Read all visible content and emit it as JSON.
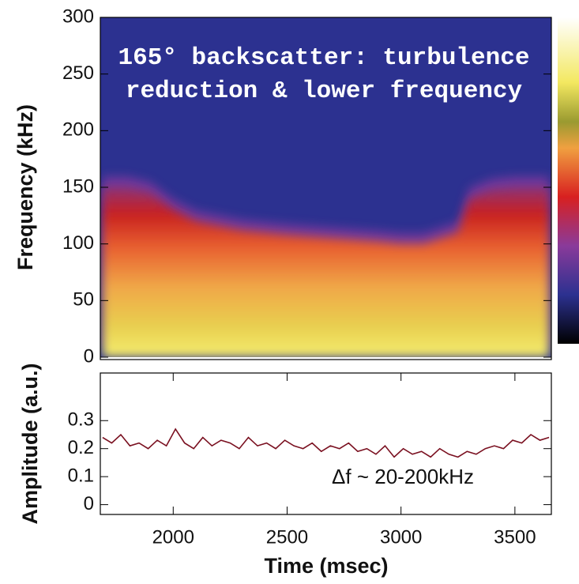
{
  "chart_data": [
    {
      "type": "heatmap",
      "annotation_lines": [
        "165° backscatter: turbulence",
        "reduction & lower frequency"
      ],
      "ylabel": "Frequency (kHz)",
      "x": [
        1690,
        1800,
        1900,
        2000,
        2100,
        2300,
        2500,
        2700,
        2900,
        3000,
        3100,
        3250,
        3300,
        3400,
        3500,
        3650
      ],
      "values": [
        150,
        150,
        145,
        130,
        120,
        112,
        108,
        105,
        102,
        100,
        100,
        110,
        140,
        148,
        150,
        150
      ],
      "xlim": [
        1680,
        3660
      ],
      "ylim": [
        0,
        300
      ],
      "yticks": [
        0,
        50,
        100,
        150,
        200,
        250,
        300
      ],
      "background": "#2c3190"
    },
    {
      "type": "line",
      "ylabel": "Amplitude (a.u.)",
      "xlabel": "Time (msec)",
      "annotation": "Δf ~ 20-200kHz",
      "x": [
        1690,
        1730,
        1770,
        1810,
        1850,
        1890,
        1930,
        1970,
        2010,
        2050,
        2090,
        2130,
        2170,
        2210,
        2250,
        2290,
        2330,
        2370,
        2410,
        2450,
        2490,
        2530,
        2570,
        2610,
        2650,
        2690,
        2730,
        2770,
        2810,
        2850,
        2890,
        2930,
        2970,
        3010,
        3050,
        3090,
        3130,
        3170,
        3210,
        3250,
        3290,
        3330,
        3370,
        3410,
        3450,
        3490,
        3530,
        3570,
        3610,
        3650
      ],
      "values": [
        0.24,
        0.22,
        0.25,
        0.21,
        0.22,
        0.2,
        0.23,
        0.21,
        0.27,
        0.22,
        0.2,
        0.24,
        0.21,
        0.23,
        0.22,
        0.2,
        0.24,
        0.21,
        0.22,
        0.2,
        0.23,
        0.21,
        0.2,
        0.22,
        0.19,
        0.21,
        0.2,
        0.22,
        0.19,
        0.2,
        0.18,
        0.21,
        0.17,
        0.2,
        0.18,
        0.19,
        0.17,
        0.2,
        0.18,
        0.17,
        0.19,
        0.18,
        0.2,
        0.21,
        0.2,
        0.23,
        0.22,
        0.25,
        0.23,
        0.24
      ],
      "color": "#7a1020",
      "xlim": [
        1680,
        3660
      ],
      "ylim": [
        -0.035,
        0.47
      ],
      "xticks": [
        2000,
        2500,
        3000,
        3500
      ],
      "yticks": [
        0,
        0.1,
        0.2,
        0.3
      ]
    }
  ]
}
